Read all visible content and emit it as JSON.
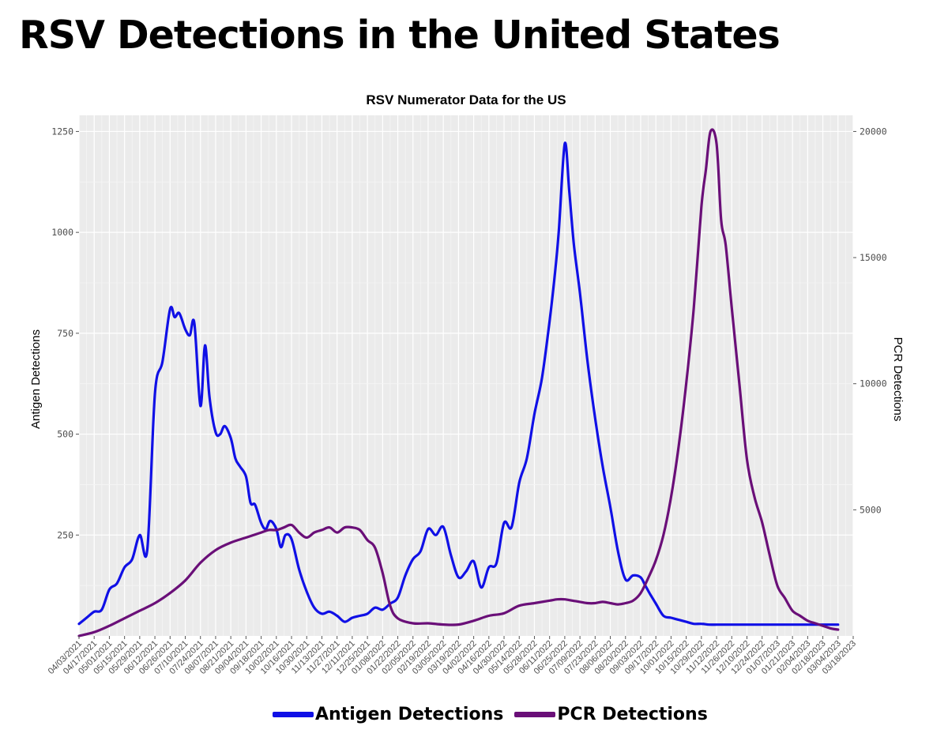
{
  "headline": "RSV Detections in the United States",
  "colors": {
    "antigen": "#1010e6",
    "pcr": "#6a0f78",
    "panel": "#ebebeb",
    "grid_major": "#ffffff"
  },
  "chart_data": {
    "type": "line",
    "title": "RSV Numerator Data for the US",
    "xlabel": "",
    "ylabel": "Antigen Detections",
    "y2label": "PCR Detections",
    "ylim": [
      0,
      1290
    ],
    "y2lim": [
      0,
      20640
    ],
    "yticks": [
      250,
      500,
      750,
      1000,
      1250
    ],
    "y2ticks": [
      5000,
      10000,
      15000,
      20000
    ],
    "xticks": [
      "04/03/2021",
      "04/17/2021",
      "05/01/2021",
      "05/15/2021",
      "05/29/2021",
      "06/12/2021",
      "06/26/2021",
      "07/10/2021",
      "07/24/2021",
      "08/07/2021",
      "08/21/2021",
      "09/04/2021",
      "09/18/2021",
      "10/02/2021",
      "10/16/2021",
      "10/30/2021",
      "11/13/2021",
      "11/27/2021",
      "12/11/2021",
      "12/25/2021",
      "01/08/2022",
      "01/22/2022",
      "02/05/2022",
      "02/19/2022",
      "03/05/2022",
      "03/19/2022",
      "04/02/2022",
      "04/16/2022",
      "04/30/2022",
      "05/14/2022",
      "05/28/2022",
      "06/11/2022",
      "06/25/2022",
      "07/09/2022",
      "07/23/2022",
      "08/06/2022",
      "08/20/2022",
      "09/03/2022",
      "09/17/2022",
      "10/01/2022",
      "10/15/2022",
      "10/29/2022",
      "11/12/2022",
      "11/26/2022",
      "12/10/2022",
      "12/24/2022",
      "01/07/2023",
      "01/21/2023",
      "02/04/2023",
      "02/18/2023",
      "03/04/2023",
      "03/18/2023"
    ],
    "legend_position": "bottom",
    "series": [
      {
        "name": "Antigen Detections",
        "axis": "left",
        "x": [
          0,
          0.5,
          1,
          1.5,
          2,
          2.5,
          3,
          3.5,
          4,
          4.5,
          5,
          5.5,
          6,
          6.3,
          6.6,
          7,
          7.3,
          7.6,
          8,
          8.3,
          8.6,
          9,
          9.3,
          9.6,
          10,
          10.3,
          10.6,
          11,
          11.3,
          11.6,
          12,
          12.3,
          12.6,
          13,
          13.3,
          13.6,
          14,
          14.5,
          15,
          15.5,
          16,
          16.5,
          17,
          17.5,
          18,
          18.5,
          19,
          19.5,
          20,
          20.5,
          21,
          21.5,
          22,
          22.5,
          23,
          23.5,
          24,
          24.5,
          25,
          25.5,
          26,
          26.5,
          27,
          27.5,
          28,
          28.5,
          29,
          29.5,
          30,
          30.5,
          31,
          31.3,
          31.6,
          32,
          32.3,
          32.6,
          33,
          33.5,
          34,
          34.5,
          35,
          35.5,
          36,
          36.5,
          37,
          37.3,
          37.6,
          38,
          38.5,
          39,
          39.5,
          40,
          40.5,
          41,
          41.5,
          42,
          42.3,
          42.6,
          43,
          43.5,
          44,
          44.5,
          45,
          45.5,
          46,
          46.5,
          47,
          47.5,
          48,
          48.5,
          49,
          49.5,
          50
        ],
        "values": [
          30,
          45,
          60,
          65,
          115,
          130,
          170,
          190,
          250,
          215,
          600,
          680,
          810,
          790,
          800,
          760,
          745,
          775,
          570,
          720,
          590,
          505,
          500,
          520,
          490,
          440,
          420,
          395,
          330,
          325,
          280,
          265,
          285,
          265,
          220,
          250,
          240,
          165,
          110,
          70,
          55,
          60,
          50,
          35,
          45,
          50,
          55,
          70,
          65,
          80,
          95,
          150,
          190,
          210,
          265,
          250,
          270,
          200,
          145,
          160,
          185,
          120,
          170,
          180,
          280,
          270,
          380,
          440,
          550,
          640,
          780,
          880,
          1000,
          1220,
          1100,
          970,
          850,
          680,
          540,
          420,
          320,
          210,
          140,
          150,
          145,
          125,
          105,
          80,
          50,
          45,
          40,
          35,
          30,
          30,
          28,
          28,
          28,
          28,
          28,
          28,
          28,
          28,
          28,
          28,
          28,
          28,
          28,
          28,
          28,
          28,
          28,
          28,
          28
        ],
        "note": "x = biweekly tick index (0 = 04/03/2021)"
      },
      {
        "name": "PCR Detections",
        "axis": "right",
        "x": [
          0,
          1,
          2,
          3,
          4,
          5,
          6,
          7,
          8,
          9,
          10,
          11,
          12,
          12.5,
          13,
          13.5,
          14,
          14.5,
          15,
          15.5,
          16,
          16.5,
          17,
          17.5,
          18,
          18.5,
          19,
          19.5,
          20,
          20.5,
          21,
          22,
          23,
          24,
          25,
          26,
          27,
          28,
          29,
          30,
          31,
          31.5,
          32,
          32.5,
          33,
          33.5,
          34,
          34.5,
          35,
          35.5,
          36,
          36.5,
          37,
          37.5,
          38,
          38.5,
          39,
          39.5,
          40,
          40.5,
          41,
          41.3,
          41.6,
          42,
          42.3,
          42.6,
          43,
          43.5,
          44,
          44.5,
          45,
          45.5,
          46,
          46.5,
          47,
          47.5,
          48,
          48.5,
          49,
          49.5,
          50
        ],
        "values": [
          0,
          150,
          400,
          700,
          1000,
          1300,
          1700,
          2200,
          2900,
          3400,
          3700,
          3900,
          4100,
          4200,
          4200,
          4300,
          4400,
          4100,
          3900,
          4100,
          4200,
          4300,
          4100,
          4300,
          4300,
          4200,
          3800,
          3500,
          2500,
          1200,
          700,
          500,
          500,
          450,
          450,
          600,
          800,
          900,
          1200,
          1300,
          1400,
          1450,
          1450,
          1400,
          1350,
          1300,
          1300,
          1350,
          1300,
          1250,
          1300,
          1400,
          1700,
          2300,
          3000,
          4000,
          5500,
          7500,
          10000,
          13000,
          17000,
          18500,
          20000,
          19500,
          16500,
          15500,
          13000,
          10000,
          7000,
          5500,
          4500,
          3200,
          2000,
          1500,
          1000,
          800,
          600,
          500,
          400,
          300,
          250
        ],
        "note": "x = biweekly tick index (0 = 04/03/2021)"
      }
    ]
  },
  "legend": {
    "antigen_label": "Antigen Detections",
    "pcr_label": "PCR Detections"
  }
}
